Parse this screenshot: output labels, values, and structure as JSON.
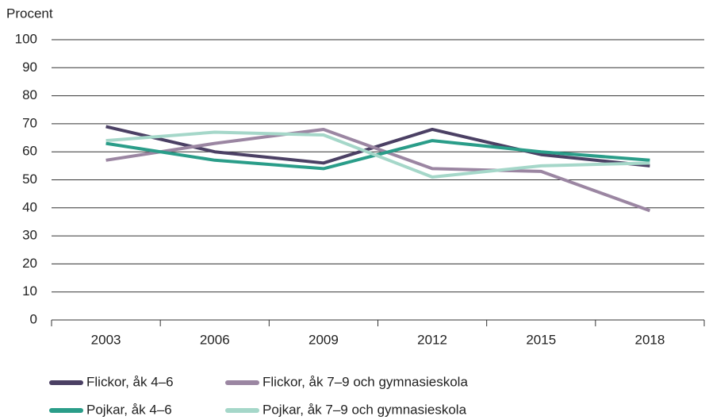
{
  "chart_data": {
    "type": "line",
    "y_label": "Procent",
    "categories": [
      "2003",
      "2006",
      "2009",
      "2012",
      "2015",
      "2018"
    ],
    "series": [
      {
        "name": "Flickor, åk 4–6",
        "color": "#4b4064",
        "values": [
          69,
          60,
          56,
          68,
          59,
          55
        ]
      },
      {
        "name": "Flickor, åk 7–9 och gymnasieskola",
        "color": "#9b86a2",
        "values": [
          57,
          63,
          68,
          54,
          53,
          39
        ]
      },
      {
        "name": "Pojkar, åk 4–6",
        "color": "#2a9d89",
        "values": [
          63,
          57,
          54,
          64,
          60,
          57
        ]
      },
      {
        "name": "Pojkar, åk 7–9 och gymnasieskola",
        "color": "#a5d7c9",
        "values": [
          64,
          67,
          66,
          51,
          55,
          56
        ]
      }
    ],
    "ylim": [
      0,
      100
    ],
    "yticks": [
      0,
      10,
      20,
      30,
      40,
      50,
      60,
      70,
      80,
      90,
      100
    ],
    "grid": true
  }
}
